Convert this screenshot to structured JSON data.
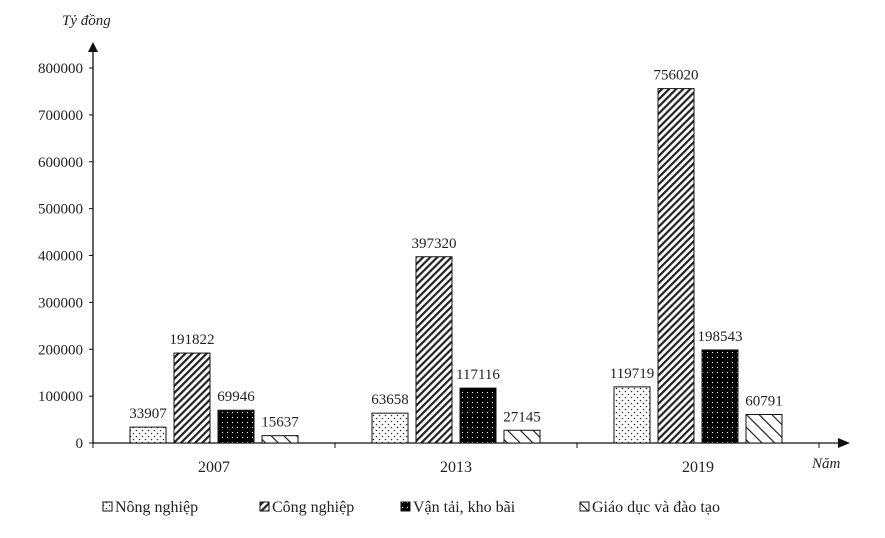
{
  "chart_data": {
    "type": "bar",
    "ylabel": "Tỷ đồng",
    "xlabel": "Năm",
    "categories": [
      "2007",
      "2013",
      "2019"
    ],
    "ylim": [
      0,
      800000
    ],
    "yticks": [
      0,
      100000,
      200000,
      300000,
      400000,
      500000,
      600000,
      700000,
      800000
    ],
    "grid": false,
    "legend_position": "bottom",
    "series": [
      {
        "name": "Nông nghiệp",
        "values": [
          33907,
          63658,
          119719
        ],
        "pattern": "dots"
      },
      {
        "name": "Công nghiệp",
        "values": [
          191822,
          397320,
          756020
        ],
        "pattern": "diagonal-dense"
      },
      {
        "name": "Vận tải, kho bãi",
        "values": [
          69946,
          117116,
          198543
        ],
        "pattern": "dark-dots"
      },
      {
        "name": "Giáo dục và đào tạo",
        "values": [
          15637,
          27145,
          60791
        ],
        "pattern": "diagonal-wide"
      }
    ]
  }
}
